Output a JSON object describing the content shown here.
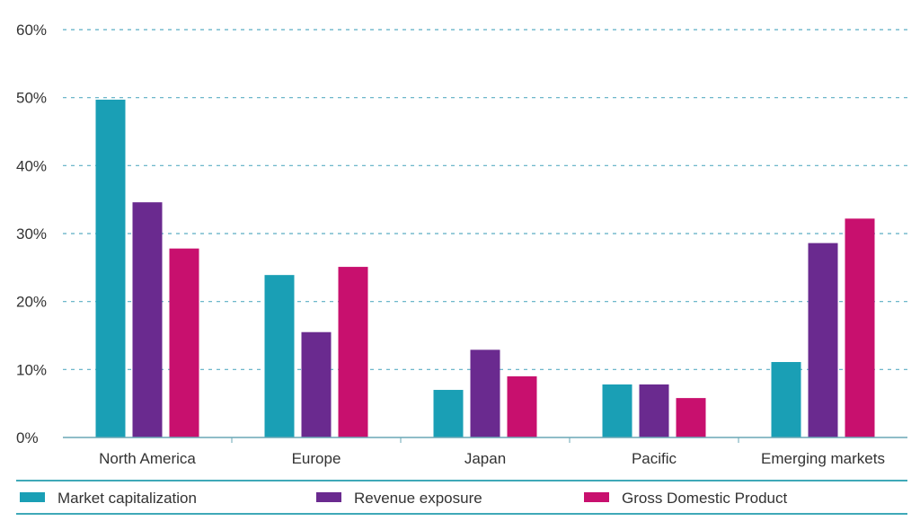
{
  "chart_data": {
    "type": "bar",
    "title": "",
    "xlabel": "",
    "ylabel": "",
    "ylim": [
      0,
      60
    ],
    "yticks": [
      0,
      10,
      20,
      30,
      40,
      50,
      60
    ],
    "ytick_labels": [
      "0%",
      "10%",
      "20%",
      "30%",
      "40%",
      "50%",
      "60%"
    ],
    "grid": true,
    "legend_position": "bottom",
    "categories": [
      "North America",
      "Europe",
      "Japan",
      "Pacific",
      "Emerging markets"
    ],
    "series": [
      {
        "name": "Market capitalization",
        "color": "#1a9fb5",
        "values": [
          49.7,
          23.9,
          7.0,
          7.8,
          11.1
        ]
      },
      {
        "name": "Revenue exposure",
        "color": "#6a2a8f",
        "values": [
          34.6,
          15.5,
          12.9,
          7.8,
          28.6
        ]
      },
      {
        "name": "Gross Domestic Product",
        "color": "#c8106e",
        "values": [
          27.8,
          25.1,
          9.0,
          5.8,
          32.2
        ]
      }
    ],
    "colors": {
      "grid": "#5aaec4",
      "axis": "#6aa7b5",
      "legend_rule": "#3fa9b8"
    }
  }
}
